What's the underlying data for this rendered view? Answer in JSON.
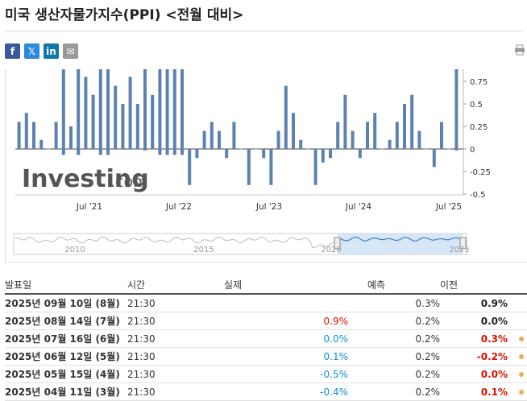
{
  "title": "미국 생산자물가지수(PPI) <전월 대비>",
  "share": {
    "facebook": "f",
    "twitter": "𝕏",
    "linkedin": "in",
    "mail": "✉"
  },
  "chart_data": {
    "type": "bar",
    "watermark": "Investing",
    "watermark_suffix": ".com",
    "x_tick_labels": [
      "Jul '21",
      "Jul '22",
      "Jul '23",
      "Jul '24",
      "Jul '25"
    ],
    "y_tick_labels": [
      "0.75",
      "0.5",
      "0.25",
      "0",
      "-0.25",
      "-0.5"
    ],
    "y_ticks": [
      0.75,
      0.5,
      0.25,
      0,
      -0.25,
      -0.5
    ],
    "ylim": [
      -0.5,
      0.95
    ],
    "values": [
      0.3,
      0.4,
      0.3,
      0.1,
      0.0,
      0.3,
      1.0,
      0.25,
      1.0,
      0.8,
      0.6,
      1.0,
      1.0,
      0.7,
      0.5,
      0.8,
      0.5,
      0.9,
      0.6,
      1.0,
      1.0,
      1.0,
      1.0,
      -0.4,
      -0.1,
      0.2,
      0.3,
      0.2,
      -0.1,
      0.3,
      0.0,
      -0.4,
      0.0,
      -0.1,
      -0.4,
      0.2,
      0.7,
      0.4,
      0.1,
      0.0,
      -0.4,
      -0.15,
      -0.1,
      0.3,
      0.6,
      0.2,
      -0.1,
      0.3,
      0.4,
      0.0,
      0.1,
      0.3,
      0.5,
      0.6,
      0.2,
      0.0,
      -0.2,
      0.3,
      0.0,
      0.9
    ],
    "navigator_labels": [
      "2010",
      "2015",
      "2020",
      "2025"
    ]
  },
  "table": {
    "headers": {
      "date": "발표일",
      "time": "시간",
      "actual": "실제",
      "forecast": "예측",
      "previous": "이전"
    },
    "rows": [
      {
        "date": "2025년 09월 10일 (8월)",
        "time": "21:30",
        "actual": "",
        "actual_color": "",
        "forecast": "0.3%",
        "previous": "0.9%",
        "previous_color": "#222222",
        "dot": false
      },
      {
        "date": "2025년 08월 14일 (7월)",
        "time": "21:30",
        "actual": "0.9%",
        "actual_color": "#d91400",
        "forecast": "0.2%",
        "previous": "0.0%",
        "previous_color": "#222222",
        "dot": false
      },
      {
        "date": "2025년 07월 16일 (6월)",
        "time": "21:30",
        "actual": "0.0%",
        "actual_color": "#0c8fdb",
        "forecast": "0.2%",
        "previous": "0.3%",
        "previous_color": "#d91400",
        "dot": true
      },
      {
        "date": "2025년 06월 12일 (5월)",
        "time": "21:30",
        "actual": "0.1%",
        "actual_color": "#0c8fdb",
        "forecast": "0.2%",
        "previous": "-0.2%",
        "previous_color": "#d91400",
        "dot": true
      },
      {
        "date": "2025년 05월 15일 (4월)",
        "time": "21:30",
        "actual": "-0.5%",
        "actual_color": "#0c8fdb",
        "forecast": "0.2%",
        "previous": "0.0%",
        "previous_color": "#d91400",
        "dot": true
      },
      {
        "date": "2025년 04월 11일 (3월)",
        "time": "21:30",
        "actual": "-0.4%",
        "actual_color": "#0c8fdb",
        "forecast": "0.2%",
        "previous": "0.1%",
        "previous_color": "#d91400",
        "dot": true
      }
    ]
  }
}
